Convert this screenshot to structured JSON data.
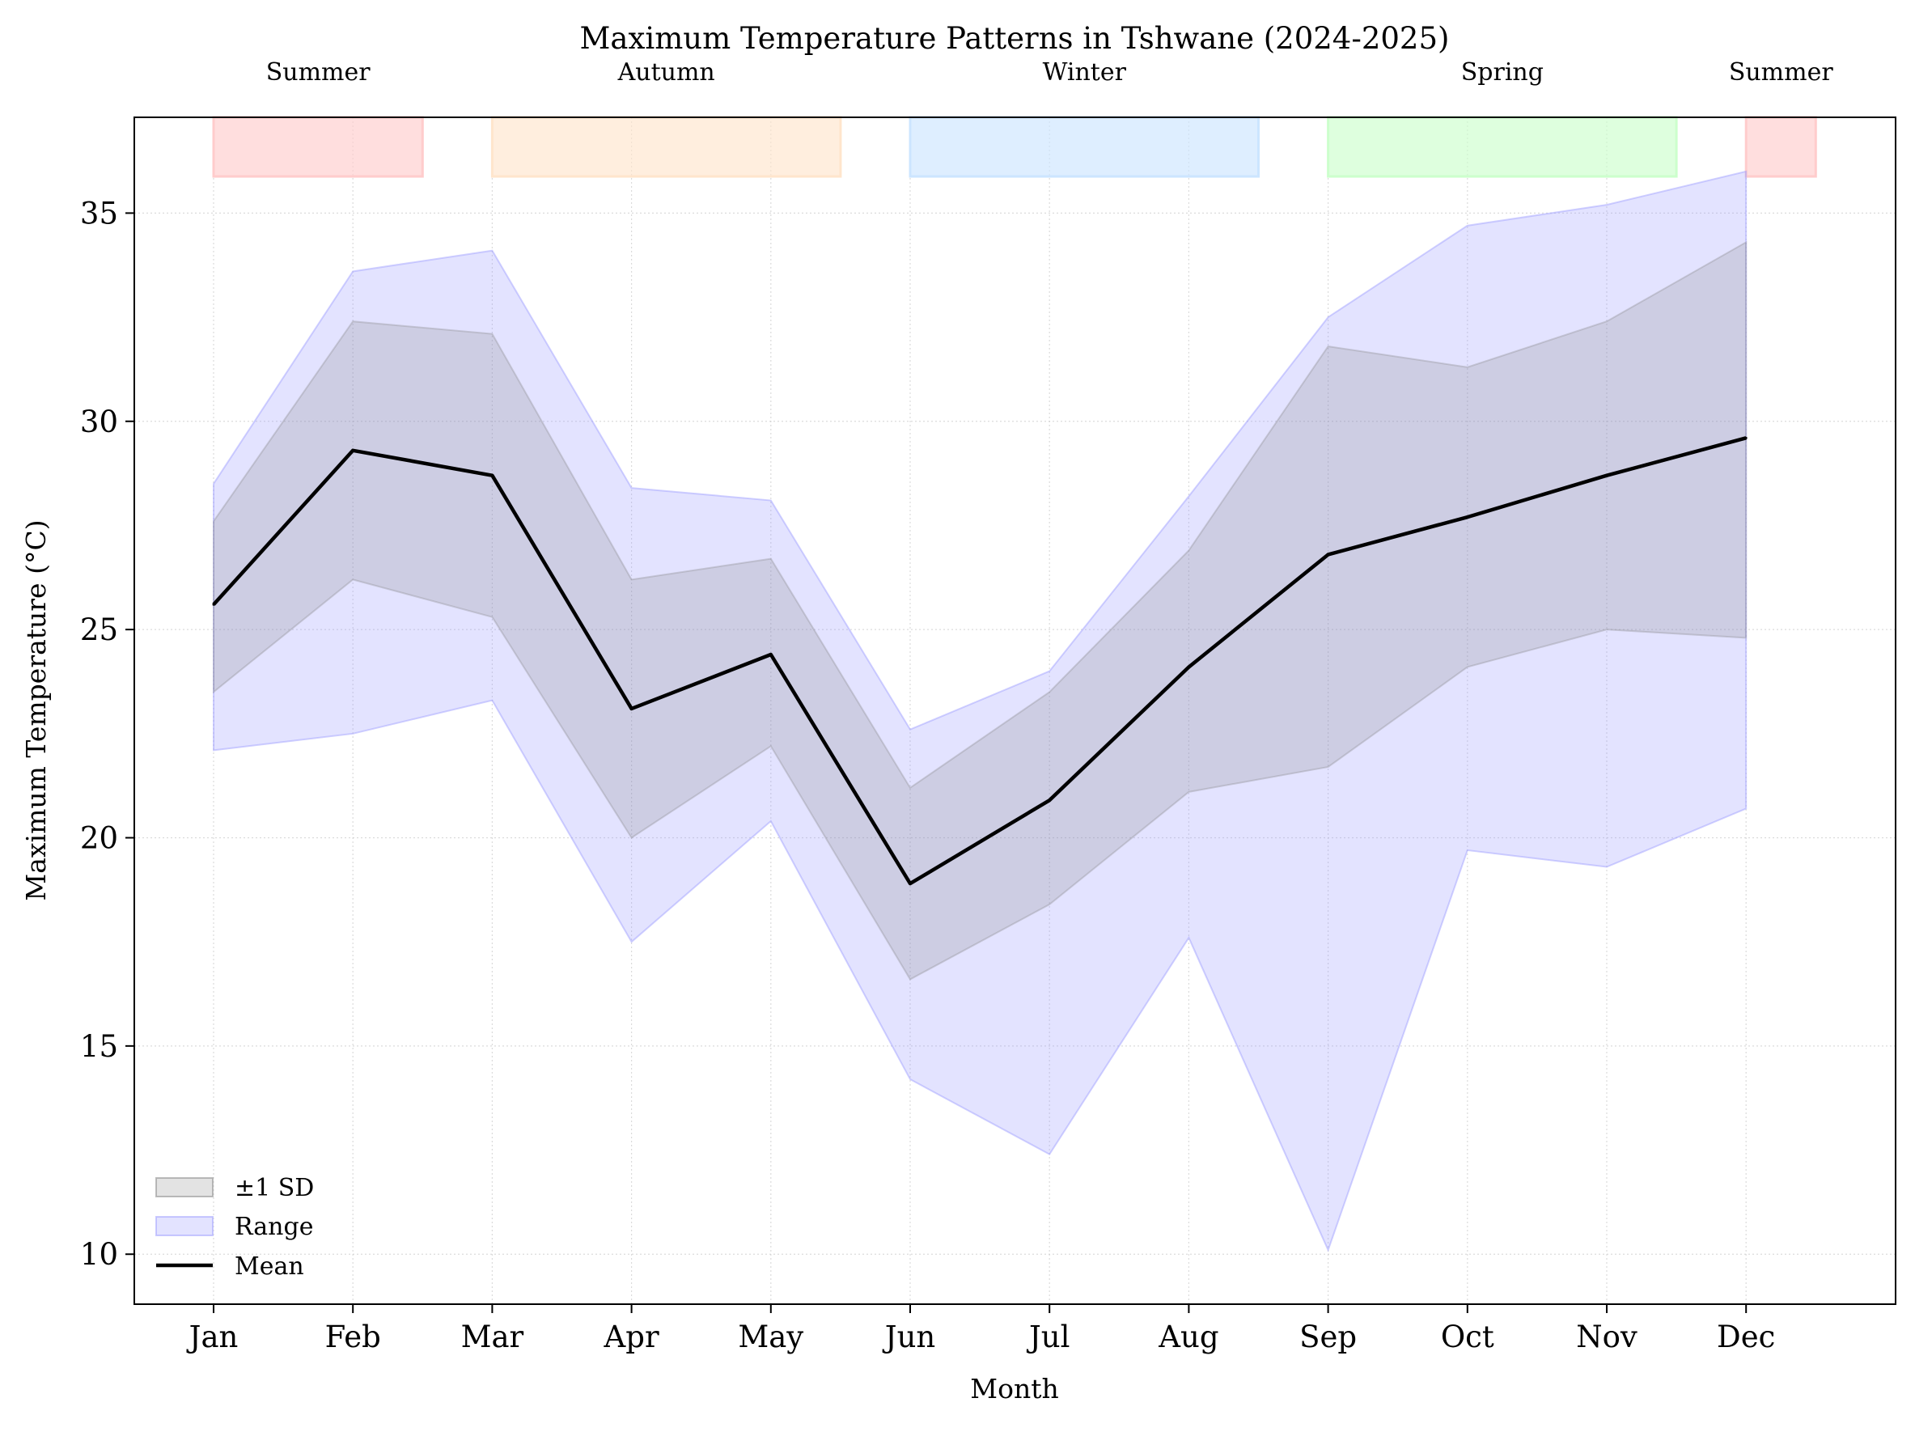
{
  "chart_data": {
    "type": "area",
    "title": "Maximum Temperature Patterns in Tshwane (2024-2025)",
    "xlabel": "Month",
    "ylabel": "Maximum Temperature (°C)",
    "categories": [
      "Jan",
      "Feb",
      "Mar",
      "Apr",
      "May",
      "Jun",
      "Jul",
      "Aug",
      "Sep",
      "Oct",
      "Nov",
      "Dec"
    ],
    "ylim": [
      8.8,
      37.3
    ],
    "yticks": [
      10,
      15,
      20,
      25,
      30,
      35
    ],
    "grid": true,
    "legend_position": "lower-left",
    "series": [
      {
        "name": "Mean",
        "kind": "line",
        "color": "#000000",
        "values": [
          25.6,
          29.3,
          28.7,
          23.1,
          24.4,
          18.9,
          20.9,
          24.1,
          26.8,
          27.7,
          28.7,
          29.6
        ]
      },
      {
        "name": "±1 SD",
        "kind": "band",
        "color": "#808080",
        "lower": [
          23.5,
          26.2,
          25.3,
          20.0,
          22.2,
          16.6,
          18.4,
          21.1,
          21.7,
          24.1,
          25.0,
          24.8
        ],
        "upper": [
          27.6,
          32.4,
          32.1,
          26.2,
          26.7,
          21.2,
          23.5,
          26.9,
          31.8,
          31.3,
          32.4,
          34.3
        ]
      },
      {
        "name": "Range",
        "kind": "band",
        "color": "#9999ff",
        "lower": [
          22.1,
          22.5,
          23.3,
          17.5,
          20.4,
          14.2,
          12.4,
          17.6,
          10.1,
          19.7,
          19.3,
          20.7
        ],
        "upper": [
          28.5,
          33.6,
          34.1,
          28.4,
          28.1,
          22.6,
          24.0,
          28.2,
          32.5,
          34.7,
          35.2,
          36.0
        ]
      }
    ],
    "seasons": [
      {
        "label": "Summer",
        "start": 0,
        "end": 1.5,
        "color": "#ffcccc"
      },
      {
        "label": "Autumn",
        "start": 2,
        "end": 4.5,
        "color": "#ffe5cc"
      },
      {
        "label": "Winter",
        "start": 5,
        "end": 7.5,
        "color": "#cce5ff"
      },
      {
        "label": "Spring",
        "start": 8,
        "end": 10.5,
        "color": "#ccffcc"
      },
      {
        "label": "Summer",
        "start": 11,
        "end": 11.5,
        "color": "#ffcccc"
      }
    ]
  }
}
